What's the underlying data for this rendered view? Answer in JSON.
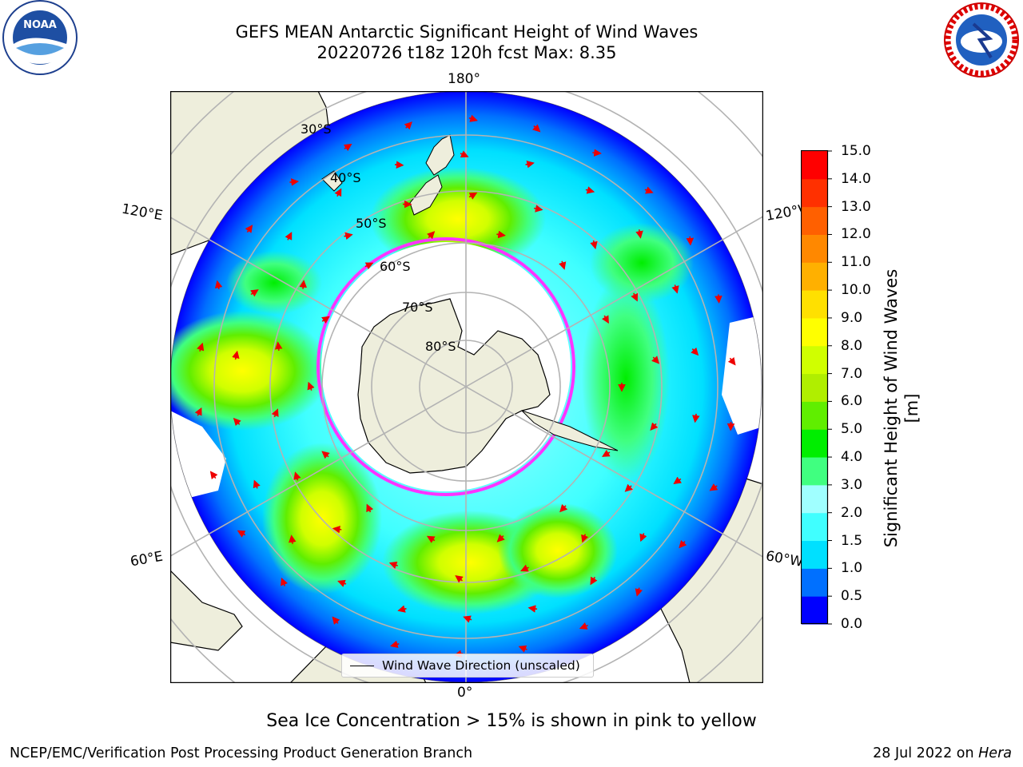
{
  "header": {
    "title_line1": "GEFS MEAN Antarctic Significant Height of Wind Waves",
    "title_line2": "20220726 t18z 120h fcst   Max: 8.35"
  },
  "logos": {
    "left": "NOAA",
    "right": "NATIONAL WEATHER SERVICE"
  },
  "map": {
    "projection": "south polar stereographic",
    "longitude_labels": {
      "top": "180°",
      "bottom": "0°",
      "upper_left": "120°E",
      "upper_right": "120°W",
      "lower_left": "60°E",
      "lower_right": "60°W"
    },
    "latitude_labels": [
      "30°S",
      "40°S",
      "50°S",
      "60°S",
      "70°S",
      "80°S"
    ],
    "legend": "Wind Wave Direction (unscaled)",
    "colors": {
      "land": "#eeeedc",
      "grid": "#b3b3b3",
      "arrows": "#ee0000",
      "ice_edge": "#ff33ff"
    }
  },
  "colorbar": {
    "title": "Significant Height of Wind Waves [m]",
    "ticks": [
      "0.0",
      "0.5",
      "1.0",
      "1.5",
      "2.0",
      "3.0",
      "4.0",
      "5.0",
      "6.0",
      "7.0",
      "8.0",
      "9.0",
      "10.0",
      "11.0",
      "12.0",
      "13.0",
      "14.0",
      "15.0"
    ],
    "colors": [
      "#0000ff",
      "#0070ff",
      "#00e0ff",
      "#40ffff",
      "#a0ffff",
      "#40ff80",
      "#00ee00",
      "#60ee00",
      "#b0ee00",
      "#d0ff00",
      "#ffff00",
      "#ffe000",
      "#ffb000",
      "#ff8800",
      "#ff6000",
      "#ff3000",
      "#ff0000"
    ]
  },
  "footer": {
    "note": "Sea Ice Concentration > 15% is shown in pink to yellow",
    "left": "NCEP/EMC/Verification Post Processing Product Generation Branch",
    "right_date": "28 Jul 2022 on ",
    "right_host": "Hera"
  }
}
